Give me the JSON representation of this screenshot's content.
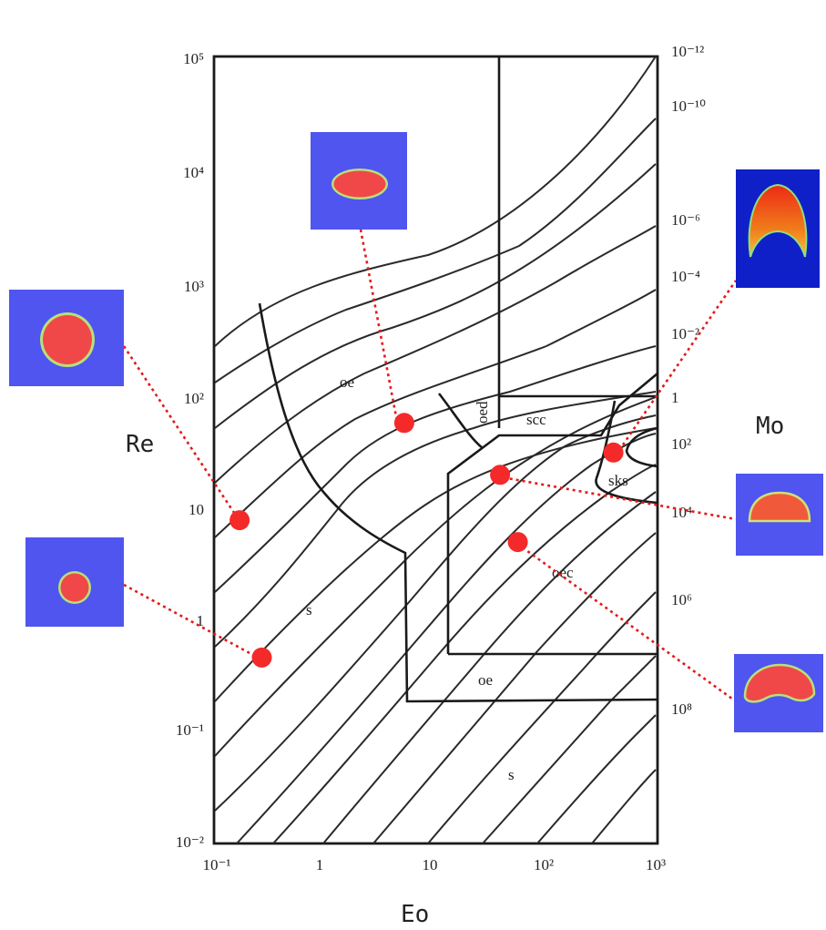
{
  "chart_data": {
    "type": "scatter",
    "title": "",
    "xlabel": "Eo",
    "ylabel": "Re",
    "right_axis_label": "Mo",
    "x_scale": "log",
    "y_scale": "log",
    "xlim": [
      0.1,
      1000
    ],
    "ylim": [
      0.01,
      100000
    ],
    "x_ticks": [
      "10⁻¹",
      "1",
      "10",
      "10²",
      "10³"
    ],
    "y_ticks": [
      "10⁻²",
      "10⁻¹",
      "1",
      "10",
      "10²",
      "10³",
      "10⁴",
      "10⁵"
    ],
    "mo_labels": [
      "10⁻¹²",
      "10⁻¹⁰",
      "10⁻⁶",
      "10⁻⁴",
      "10⁻²",
      "1",
      "10²",
      "10⁴",
      "10⁶",
      "10⁸"
    ],
    "regions": [
      "oe",
      "oed",
      "scc",
      "sks",
      "oec",
      "s",
      "oe",
      "s"
    ],
    "grid": false,
    "legend": "none",
    "colors": {
      "point": "#f42a2a",
      "leader": "#e31b1b",
      "inset_background": "#4f55ee",
      "bubble": "#f04848",
      "bubble_rim": "#b8e07a"
    },
    "points": [
      {
        "eo": 0.17,
        "re": 7.5,
        "inset": "spherical-large"
      },
      {
        "eo": 0.27,
        "re": 0.45,
        "inset": "spherical-small"
      },
      {
        "eo": 5.2,
        "re": 55,
        "inset": "ellipsoidal"
      },
      {
        "eo": 38,
        "re": 19,
        "inset": "spherical-cap"
      },
      {
        "eo": 55,
        "re": 4.8,
        "inset": "ellipsoidal-cap"
      },
      {
        "eo": 400,
        "re": 30,
        "inset": "skirted"
      }
    ]
  }
}
